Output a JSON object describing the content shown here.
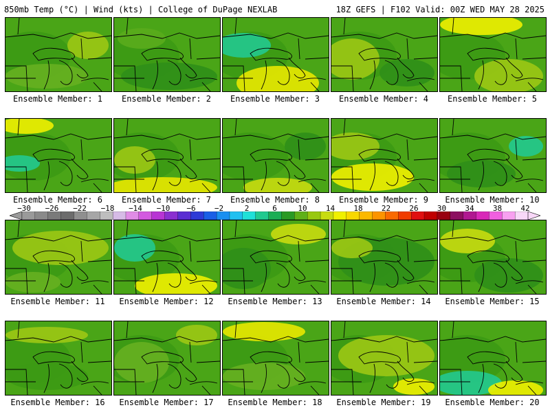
{
  "header": {
    "title_left": "850mb Temp (°C) | Wind (kts) | College of DuPage NEXLAB",
    "title_right": "18Z GEFS | F102 Valid: 00Z WED MAY 28 2025"
  },
  "colorbar": {
    "tick_labels": [
      "-30",
      "-26",
      "-22",
      "-18",
      "-14",
      "-10",
      "-6",
      "-2",
      "2",
      "6",
      "10",
      "14",
      "18",
      "22",
      "26",
      "30",
      "34",
      "38",
      "42"
    ],
    "colors": [
      "#9a9a9a",
      "#8a8a8a",
      "#7a7a7a",
      "#6c6c6c",
      "#8f8f8f",
      "#a6a6a6",
      "#bebebe",
      "#d6bbe6",
      "#e08ce6",
      "#d35ae0",
      "#b834d4",
      "#8a2fd0",
      "#5a2ed2",
      "#2e3ad6",
      "#1a5fe6",
      "#1a8ff0",
      "#20c0f0",
      "#20e0d8",
      "#22c98f",
      "#1cad55",
      "#2a9a24",
      "#5fb018",
      "#98c810",
      "#c8dc10",
      "#f0f000",
      "#f8d800",
      "#fcb800",
      "#fc9400",
      "#fa6a00",
      "#f03c00",
      "#e01010",
      "#c00000",
      "#980010",
      "#8c1060",
      "#b01890",
      "#d828b8",
      "#f060e0",
      "#f8a0f0",
      "#f8d8f8"
    ],
    "units_note": "degC"
  },
  "panels": [
    {
      "label": "Ensemble Member: 1"
    },
    {
      "label": "Ensemble Member: 2"
    },
    {
      "label": "Ensemble Member: 3"
    },
    {
      "label": "Ensemble Member: 4"
    },
    {
      "label": "Ensemble Member: 5"
    },
    {
      "label": "Ensemble Member: 6"
    },
    {
      "label": "Ensemble Member: 7"
    },
    {
      "label": "Ensemble Member: 8"
    },
    {
      "label": "Ensemble Member: 9"
    },
    {
      "label": "Ensemble Member: 10"
    },
    {
      "label": "Ensemble Member: 11"
    },
    {
      "label": "Ensemble Member: 12"
    },
    {
      "label": "Ensemble Member: 13"
    },
    {
      "label": "Ensemble Member: 14"
    },
    {
      "label": "Ensemble Member: 15"
    },
    {
      "label": "Ensemble Member: 16"
    },
    {
      "label": "Ensemble Member: 17"
    },
    {
      "label": "Ensemble Member: 18"
    },
    {
      "label": "Ensemble Member: 19"
    },
    {
      "label": "Ensemble Member: 20"
    }
  ]
}
